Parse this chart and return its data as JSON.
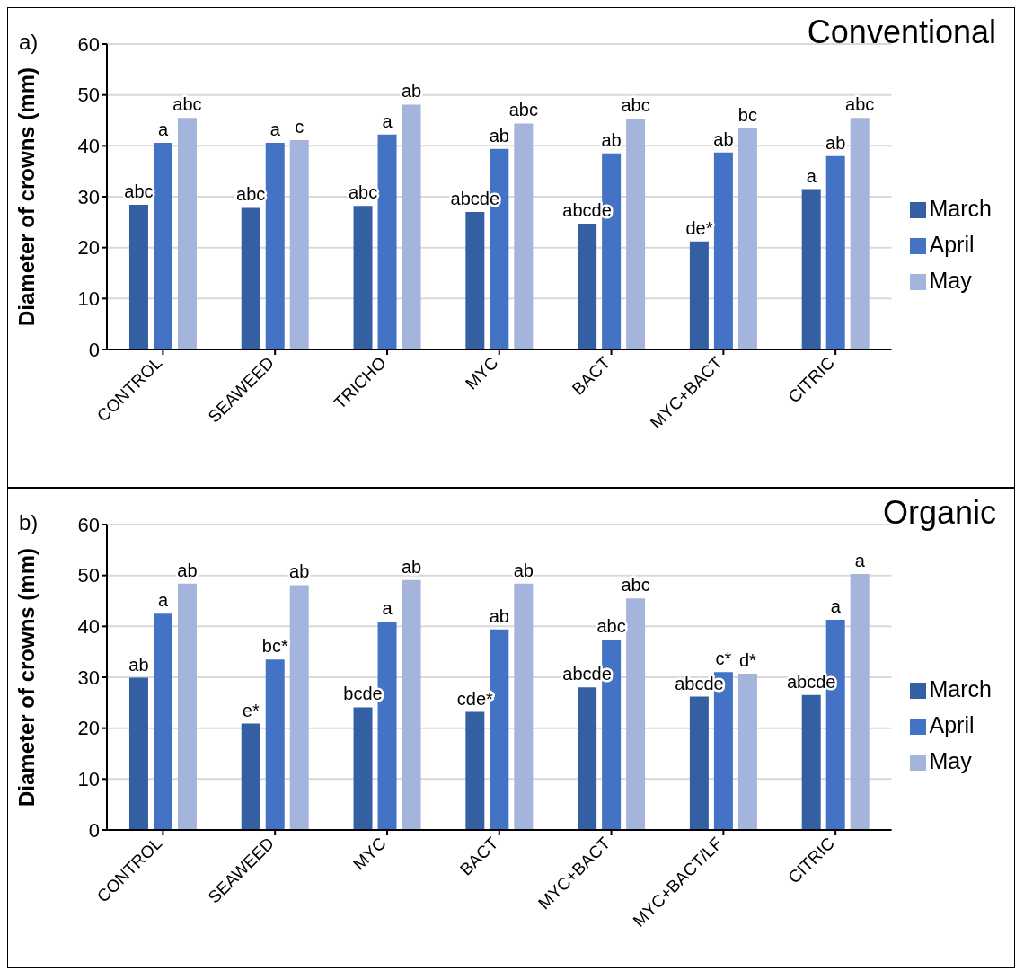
{
  "chart_data": [
    {
      "type": "bar",
      "title": "Conventional",
      "annotations": [
        "a)"
      ],
      "ylabel": "Diameter of crowns (mm)",
      "categories": [
        "CONTROL",
        "SEAWEED",
        "TRICHO",
        "MYC",
        "BACT",
        "MYC+BACT",
        "CITRIC"
      ],
      "series": [
        {
          "name": "March",
          "color": "#355fa3",
          "values": [
            28.4,
            27.8,
            28.2,
            27.0,
            24.7,
            21.2,
            31.5
          ],
          "value_labels": [
            "abc",
            "abc",
            "abc",
            "abcde",
            "abcde",
            "de*",
            "a"
          ]
        },
        {
          "name": "April",
          "color": "#4472c4",
          "values": [
            40.6,
            40.6,
            42.2,
            39.4,
            38.5,
            38.7,
            38.0
          ],
          "value_labels": [
            "a",
            "a",
            "a",
            "ab",
            "ab",
            "ab",
            "ab"
          ]
        },
        {
          "name": "May",
          "color": "#a5b4dc",
          "values": [
            45.5,
            41.1,
            48.1,
            44.4,
            45.3,
            43.5,
            45.5
          ],
          "value_labels": [
            "abc",
            "c",
            "ab",
            "abc",
            "abc",
            "bc",
            "abc"
          ]
        }
      ],
      "ylim": [
        0,
        60
      ],
      "yticks": [
        0,
        10,
        20,
        30,
        40,
        50,
        60
      ],
      "grid": "y",
      "legend": "right"
    },
    {
      "type": "bar",
      "title": "Organic",
      "annotations": [
        "b)"
      ],
      "ylabel": "Diameter of crowns (mm)",
      "categories": [
        "CONTROL",
        "SEAWEED",
        "MYC",
        "BACT",
        "MYC+BACT",
        "MYC+BACT/LF",
        "CITRIC"
      ],
      "series": [
        {
          "name": "March",
          "color": "#355fa3",
          "values": [
            29.9,
            20.9,
            24.1,
            23.2,
            28.0,
            26.2,
            26.5
          ],
          "value_labels": [
            "ab",
            "e*",
            "bcde",
            "cde*",
            "abcde",
            "abcde",
            "abcde"
          ]
        },
        {
          "name": "April",
          "color": "#4472c4",
          "values": [
            42.5,
            33.5,
            40.9,
            39.4,
            37.4,
            31.0,
            41.3
          ],
          "value_labels": [
            "a",
            "bc*",
            "a",
            "ab",
            "abc",
            "c*",
            "a"
          ]
        },
        {
          "name": "May",
          "color": "#a5b4dc",
          "values": [
            48.4,
            48.1,
            49.1,
            48.4,
            45.5,
            30.7,
            50.3
          ],
          "value_labels": [
            "ab",
            "ab",
            "ab",
            "ab",
            "abc",
            "d*",
            "a"
          ]
        }
      ],
      "ylim": [
        0,
        60
      ],
      "yticks": [
        0,
        10,
        20,
        30,
        40,
        50,
        60
      ],
      "grid": "y",
      "legend": "right"
    }
  ]
}
